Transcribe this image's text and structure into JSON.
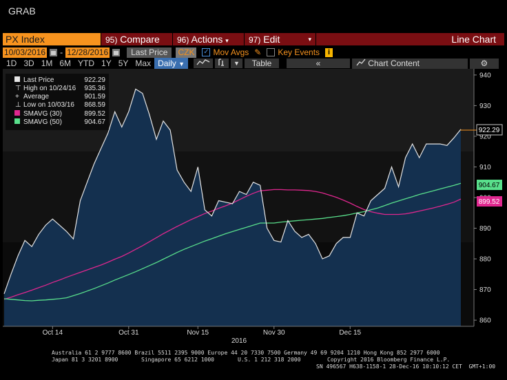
{
  "ticker": "GRAB",
  "toolbar": {
    "index": "PX Index",
    "compare_num": "95)",
    "compare": "Compare",
    "actions_num": "96)",
    "actions": "Actions",
    "edit_num": "97)",
    "edit": "Edit",
    "chart_type": "Line Chart"
  },
  "controls": {
    "start_date": "10/03/2016",
    "end_date": "12/28/2016",
    "field": "Last Price",
    "currency": "CZK",
    "mov_avgs": "Mov Avgs",
    "key_events": "Key Events",
    "ranges": [
      "1D",
      "3D",
      "1M",
      "6M",
      "YTD",
      "1Y",
      "5Y",
      "Max"
    ],
    "frequency": "Daily",
    "table": "Table",
    "chart_content": "Chart Content"
  },
  "colors": {
    "price": "#e6e6e6",
    "area": "#14304f",
    "sma30": "#e0278f",
    "sma50": "#59e08c",
    "accent": "#f7931e",
    "toolbar_red": "#7a0e12"
  },
  "legend": {
    "last_price_label": "Last Price",
    "last_price_value": "922.29",
    "high_label": "High on 10/24/16",
    "high_value": "935.36",
    "avg_label": "Average",
    "avg_value": "901.59",
    "low_label": "Low on 10/03/16",
    "low_value": "868.59",
    "sma30_label": "SMAVG (30)",
    "sma30_value": "899.52",
    "sma50_label": "SMAVG (50)",
    "sma50_value": "904.67"
  },
  "chart_data": {
    "type": "area",
    "x_ticks": [
      "Oct 14",
      "Oct 31",
      "Nov 15",
      "Nov 30",
      "Dec 15"
    ],
    "x_year_label": "2016",
    "ylim": [
      858,
      942
    ],
    "y_ticks": [
      860,
      870,
      880,
      890,
      900,
      910,
      920,
      930,
      940
    ],
    "series": [
      {
        "name": "Last Price",
        "values": [
          868.6,
          875,
          881,
          886,
          884,
          888,
          891,
          893,
          891,
          889,
          886.5,
          899,
          905,
          911,
          916,
          921,
          928,
          923,
          928,
          935.4,
          934,
          927,
          919,
          925,
          922,
          909,
          905,
          902,
          910,
          896,
          894,
          899,
          898.5,
          898,
          902,
          901,
          905,
          904,
          890,
          886,
          885.5,
          892.5,
          889,
          887,
          888,
          885,
          880,
          881,
          885,
          887,
          887,
          895,
          894,
          899,
          901,
          903,
          910,
          903.5,
          913,
          917.5,
          913,
          917.5,
          917.5,
          917.5,
          917,
          919.5,
          922.29
        ]
      },
      {
        "name": "SMAVG (30)",
        "values": [
          866.8,
          867.5,
          868.3,
          869,
          869.8,
          870.6,
          871.4,
          872.3,
          873.1,
          874,
          874.8,
          875.6,
          876.4,
          877.2,
          878,
          878.9,
          879.9,
          880.8,
          881.9,
          883.1,
          884.3,
          885.6,
          886.9,
          888.2,
          889.4,
          890.6,
          891.7,
          892.8,
          893.8,
          894.8,
          895.6,
          896.5,
          897.3,
          898.2,
          899.3,
          900.4,
          901.4,
          902.2,
          902.4,
          902.6,
          902.6,
          902.5,
          902.5,
          902.4,
          902.3,
          902,
          901.5,
          900.8,
          900.1,
          899.2,
          898.2,
          897.1,
          896.1,
          895.4,
          894.9,
          894.5,
          894.5,
          894.5,
          894.7,
          895.1,
          895.6,
          896.1,
          896.6,
          897.2,
          897.8,
          898.5,
          899.52
        ]
      },
      {
        "name": "SMAVG (50)",
        "values": [
          867,
          866.8,
          866.6,
          866.4,
          866.3,
          866.5,
          866.6,
          866.8,
          867,
          867.3,
          868,
          868.7,
          869.5,
          870.3,
          871.2,
          872.1,
          873.1,
          874,
          874.9,
          875.8,
          876.8,
          877.8,
          878.8,
          879.9,
          881,
          882.1,
          883.1,
          884,
          884.9,
          885.8,
          886.6,
          887.4,
          888.2,
          888.9,
          889.6,
          890.3,
          891,
          891.7,
          891.7,
          891.7,
          892,
          892.2,
          892.4,
          892.6,
          892.8,
          893,
          893.2,
          893.5,
          893.8,
          894.1,
          894.5,
          895,
          895.4,
          896,
          896.6,
          897.4,
          898.2,
          898.9,
          899.6,
          900.3,
          901,
          901.6,
          902.2,
          902.8,
          903.4,
          904,
          904.67
        ]
      }
    ]
  },
  "axis_labels": {
    "last_price": "922.29",
    "sma50": "904.67",
    "sma30": "899.52"
  },
  "footer": {
    "line1": "Australia 61 2 9777 8600 Brazil 5511 2395 9000 Europe 44 20 7330 7500 Germany 49 69 9204 1210 Hong Kong 852 2977 6000",
    "line2a": "Japan 81 3 3201 8900",
    "line2b": "Singapore 65 6212 1000",
    "line2c": "U.S. 1 212 318 2000",
    "line2d": "Copyright 2016 Bloomberg Finance L.P.",
    "line3": "SN 496567 H638-1158-1 28-Dec-16 10:10:12 CET  GMT+1:00"
  }
}
